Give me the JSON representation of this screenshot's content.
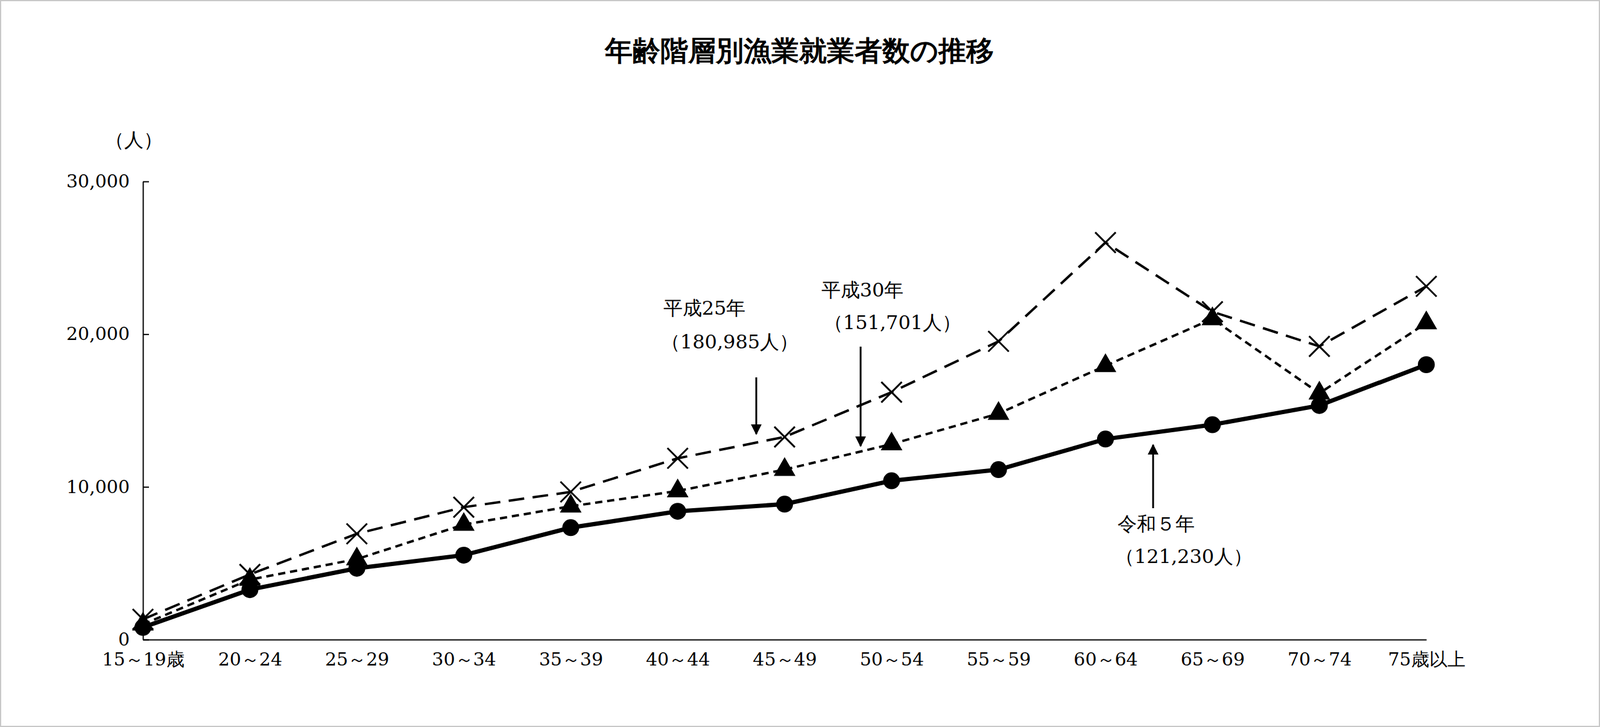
{
  "chart_data": {
    "type": "line",
    "title": "年齢階層別漁業就業者数の推移",
    "y_label": "（人）",
    "categories": [
      "15～19歳",
      "20～24",
      "25～29",
      "30～34",
      "35～39",
      "40～44",
      "45～49",
      "50～54",
      "55～59",
      "60～64",
      "65～69",
      "70～74",
      "75歳以上"
    ],
    "ylim": [
      0,
      30000
    ],
    "yticks": [
      0,
      {
        "value": 10000,
        "label": "10,000"
      },
      {
        "value": 20000,
        "label": "20,000"
      },
      {
        "value": 30000,
        "label": "30,000"
      }
    ],
    "series": [
      {
        "name": "平成25年",
        "label": "（180,985人）",
        "color": "#000000",
        "line_style": "dashed",
        "marker": "x",
        "values": [
          1330,
          4270,
          6930,
          8670,
          9670,
          11870,
          13270,
          16200,
          19530,
          26000,
          21470,
          19200,
          23130
        ]
      },
      {
        "name": "平成30年",
        "label": "（151,701人）",
        "color": "#000000",
        "line_style": "dotted",
        "marker": "triangle",
        "values": [
          1000,
          3930,
          5270,
          7530,
          8730,
          9730,
          11130,
          12800,
          14800,
          17930,
          21000,
          16130,
          20730
        ]
      },
      {
        "name": "令和５年",
        "label": "（121,230人）",
        "color": "#000000",
        "line_style": "solid",
        "marker": "circle",
        "values": [
          800,
          3270,
          4670,
          5530,
          7330,
          8400,
          8870,
          10400,
          11130,
          13130,
          14070,
          15330,
          18000
        ]
      }
    ]
  }
}
